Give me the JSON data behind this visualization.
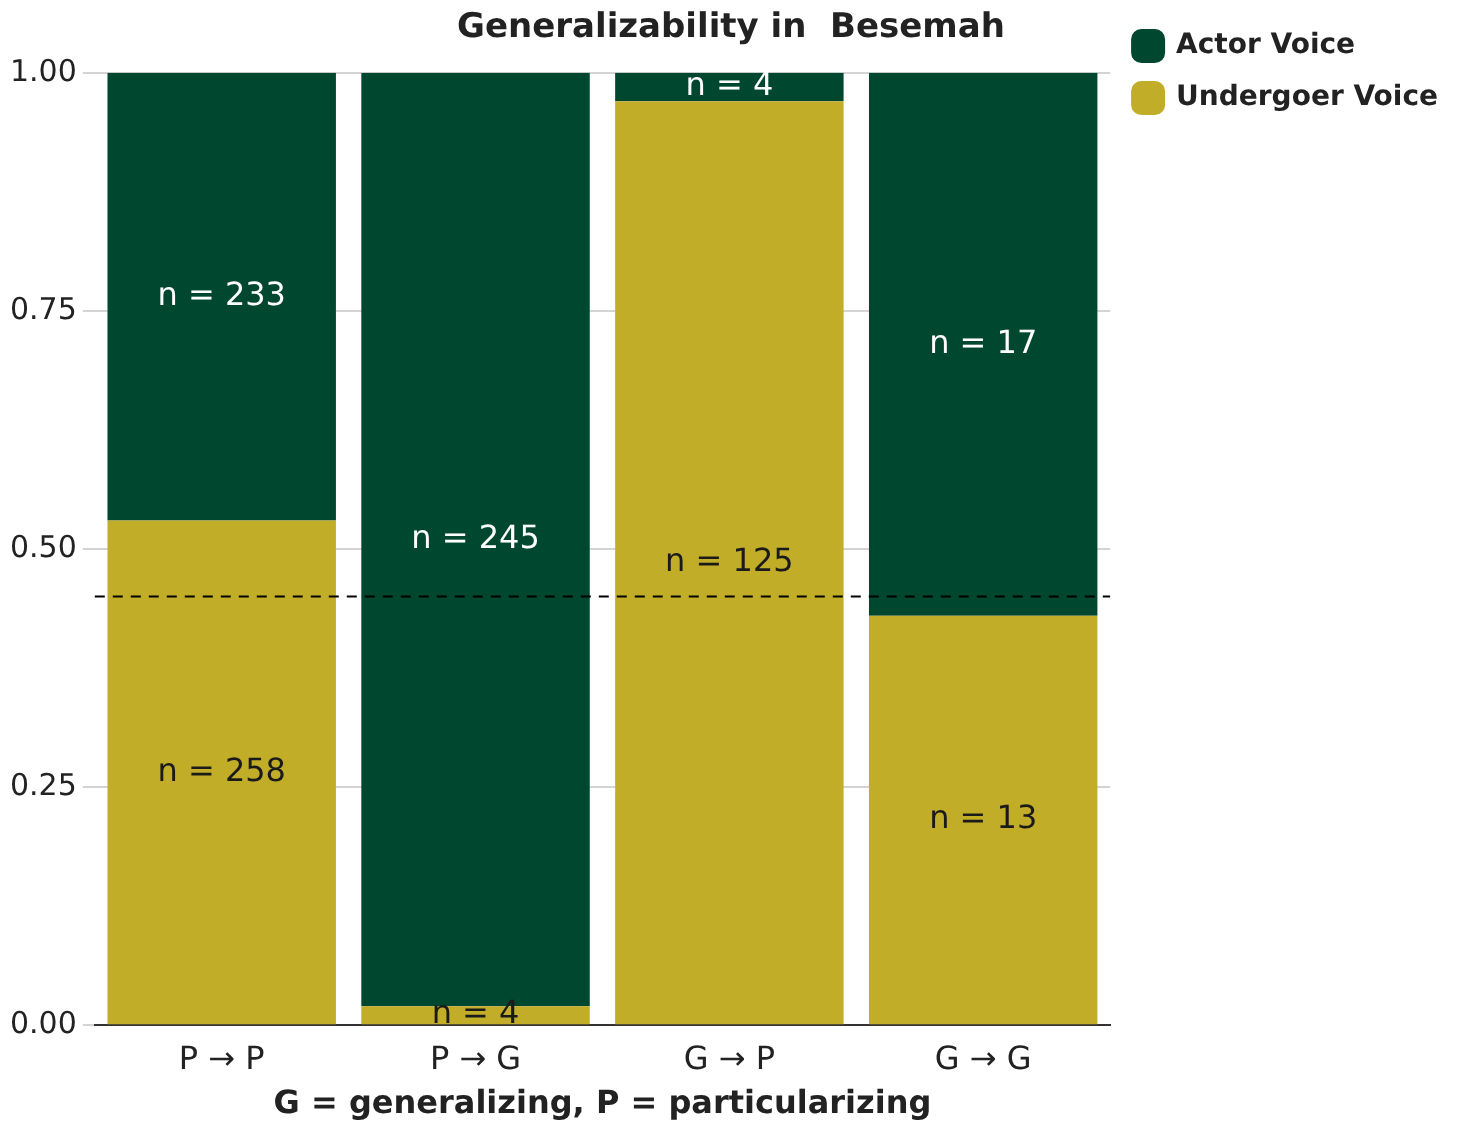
{
  "chart_data": {
    "type": "bar",
    "title": "Generalizability in  Besemah",
    "xlabel": "G = generalizing, P = particularizing",
    "categories": [
      "P → P",
      "P → G",
      "G → P",
      "G → G"
    ],
    "stacked": true,
    "series": [
      {
        "name": "Undergoer Voice",
        "color": "#c2ad29",
        "values": [
          0.53,
          0.02,
          0.97,
          0.43
        ]
      },
      {
        "name": "Actor Voice",
        "color": "#00472f",
        "values": [
          0.47,
          0.98,
          0.03,
          0.57
        ]
      }
    ],
    "annotations": [
      "n = 258",
      "n = 233",
      "n = 4",
      "n = 245",
      "n = 125",
      "n = 4",
      "n = 13",
      "n = 17"
    ],
    "ylim": [
      0,
      1
    ],
    "yticks": [
      {
        "value": 0,
        "label": "0.00"
      },
      {
        "value": 0.25,
        "label": "0.25"
      },
      {
        "value": 0.5,
        "label": "0.50"
      },
      {
        "value": 0.75,
        "label": "0.75"
      },
      {
        "value": 1,
        "label": "1.00"
      }
    ],
    "grid": "y",
    "legend": "top right",
    "ref_lines": [
      {
        "axis": "y",
        "value": 0.45,
        "line_style": "dashed",
        "color": "#000000"
      }
    ]
  }
}
